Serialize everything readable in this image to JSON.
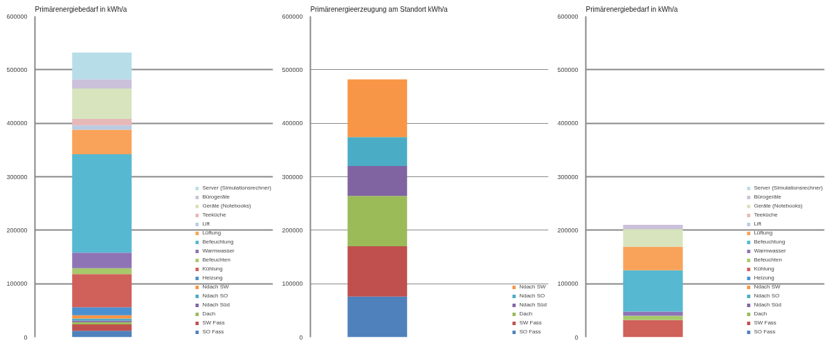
{
  "chart_data": [
    {
      "type": "bar",
      "title": "Primärenergiebedarf in kWh/a",
      "categories": [
        null
      ],
      "stacked": true,
      "ylim": [
        0,
        600000
      ],
      "yticks": [
        0,
        100000,
        200000,
        300000,
        400000,
        500000,
        600000
      ],
      "grid": "y",
      "legend": "right",
      "tick_labels": "y",
      "series": [
        {
          "name": "SO Fass",
          "color": "#4f81bd",
          "values": [
            12000
          ]
        },
        {
          "name": "SW Fass",
          "color": "#c0504d",
          "values": [
            12000
          ]
        },
        {
          "name": "Dach",
          "color": "#9bbb59",
          "values": [
            4000
          ]
        },
        {
          "name": "Ndach Süd",
          "color": "#8064a2",
          "values": [
            3000
          ]
        },
        {
          "name": "Ndach SO",
          "color": "#4bacc6",
          "values": [
            4000
          ]
        },
        {
          "name": "Ndach SW",
          "color": "#f79646",
          "values": [
            6000
          ]
        },
        {
          "name": "Heizung",
          "color": "#4a90d0",
          "values": [
            15000
          ]
        },
        {
          "name": "Kühlung",
          "color": "#d0605a",
          "values": [
            62000
          ]
        },
        {
          "name": "Befeuchten",
          "color": "#a6c96a",
          "values": [
            11000
          ]
        },
        {
          "name": "Warmwasser",
          "color": "#8f74b5",
          "values": [
            29000
          ]
        },
        {
          "name": "Befeuchtung",
          "color": "#57b8d2",
          "values": [
            184000
          ]
        },
        {
          "name": "Lüftung",
          "color": "#f9a35a",
          "values": [
            46000
          ]
        },
        {
          "name": "Lift",
          "color": "#b8cce4",
          "values": [
            8000
          ]
        },
        {
          "name": "Teeküche",
          "color": "#e6b9b8",
          "values": [
            12000
          ]
        },
        {
          "name": "Geräte (Notebooks)",
          "color": "#d7e4bd",
          "values": [
            57000
          ]
        },
        {
          "name": "Bürogeräte",
          "color": "#ccc1da",
          "values": [
            17000
          ]
        },
        {
          "name": "Server (Simulationsrechner)",
          "color": "#b7dee8",
          "values": [
            50000
          ]
        }
      ]
    },
    {
      "type": "bar",
      "title": "Primärenergieerzeugung am Standort kWh/a",
      "categories": [
        null
      ],
      "stacked": true,
      "ylim": [
        0,
        600000
      ],
      "yticks": [
        0,
        100000,
        200000,
        300000,
        400000,
        500000,
        600000
      ],
      "grid": "y",
      "legend": "right",
      "tick_labels": "y",
      "series": [
        {
          "name": "SO Fass",
          "color": "#4f81bd",
          "values": [
            76000
          ]
        },
        {
          "name": "SW Fass",
          "color": "#c0504d",
          "values": [
            94000
          ]
        },
        {
          "name": "Dach",
          "color": "#9bbb59",
          "values": [
            94000
          ]
        },
        {
          "name": "Ndach Süd",
          "color": "#8064a2",
          "values": [
            56000
          ]
        },
        {
          "name": "Ndach SO",
          "color": "#4bacc6",
          "values": [
            54000
          ]
        },
        {
          "name": "Ndach SW",
          "color": "#f79646",
          "values": [
            108000
          ]
        }
      ]
    },
    {
      "type": "bar",
      "title": "Primärenergiebedarf in kWh/a",
      "categories": [
        null
      ],
      "stacked": true,
      "ylim": [
        0,
        600000
      ],
      "yticks": [
        0,
        100000,
        200000,
        300000,
        400000,
        500000,
        600000
      ],
      "grid": "y",
      "legend": "right",
      "tick_labels": "y",
      "series": [
        {
          "name": "SO Fass",
          "color": "#4f81bd",
          "values": [
            0
          ]
        },
        {
          "name": "SW Fass",
          "color": "#c0504d",
          "values": [
            0
          ]
        },
        {
          "name": "Dach",
          "color": "#9bbb59",
          "values": [
            0
          ]
        },
        {
          "name": "Ndach Süd",
          "color": "#8064a2",
          "values": [
            0
          ]
        },
        {
          "name": "Ndach SO",
          "color": "#4bacc6",
          "values": [
            0
          ]
        },
        {
          "name": "Ndach SW",
          "color": "#f79646",
          "values": [
            0
          ]
        },
        {
          "name": "Heizung",
          "color": "#4a90d0",
          "values": [
            0
          ]
        },
        {
          "name": "Kühlung",
          "color": "#d0605a",
          "values": [
            32000
          ]
        },
        {
          "name": "Befeuchten",
          "color": "#a6c96a",
          "values": [
            8000
          ]
        },
        {
          "name": "Warmwasser",
          "color": "#8f74b5",
          "values": [
            8000
          ]
        },
        {
          "name": "Befeuchtung",
          "color": "#57b8d2",
          "values": [
            77000
          ]
        },
        {
          "name": "Lüftung",
          "color": "#f9a35a",
          "values": [
            44000
          ]
        },
        {
          "name": "Lift",
          "color": "#b8cce4",
          "values": [
            0
          ]
        },
        {
          "name": "Teeküche",
          "color": "#e6b9b8",
          "values": [
            0
          ]
        },
        {
          "name": "Geräte (Notebooks)",
          "color": "#d7e4bd",
          "values": [
            33000
          ]
        },
        {
          "name": "Bürogeräte",
          "color": "#ccc1da",
          "values": [
            8000
          ]
        },
        {
          "name": "Server (Simulationsrechner)",
          "color": "#b7dee8",
          "values": [
            0
          ]
        }
      ]
    }
  ]
}
